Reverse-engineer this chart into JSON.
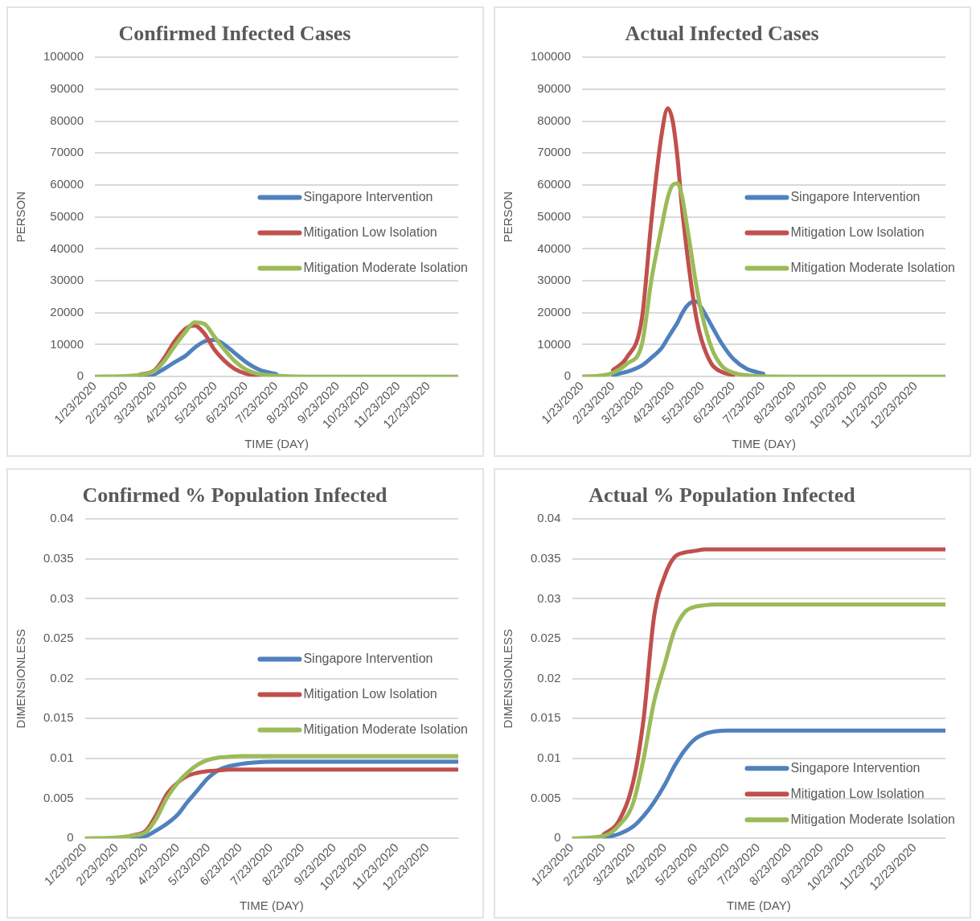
{
  "chart_data": [
    {
      "type": "line",
      "title": "Confirmed Infected Cases",
      "xlabel": "TIME (DAY)",
      "ylabel": "PERSON",
      "x": [
        "2020-01-23",
        "2020-02-23",
        "2020-03-08",
        "2020-03-23",
        "2020-04-02",
        "2020-04-12",
        "2020-04-23",
        "2020-05-02",
        "2020-05-12",
        "2020-05-22",
        "2020-06-01",
        "2020-06-11",
        "2020-06-23",
        "2020-07-06",
        "2020-07-23",
        "2020-08-23",
        "2020-09-23",
        "2021-01-22"
      ],
      "series": [
        {
          "name": "Singapore Intervention",
          "color": "#4f81bd",
          "values": [
            null,
            null,
            300,
            800,
            2500,
            4500,
            6500,
            9000,
            11000,
            11500,
            10000,
            7500,
            4500,
            2200,
            800,
            null,
            null,
            null
          ]
        },
        {
          "name": "Mitigation Low Isolation",
          "color": "#c0504d",
          "values": [
            null,
            null,
            600,
            2000,
            6000,
            11000,
            15000,
            16000,
            13500,
            8500,
            5000,
            2500,
            900,
            200,
            null,
            null,
            null,
            null
          ]
        },
        {
          "name": "Mitigation Moderate Isolation",
          "color": "#9bbb59",
          "values": [
            0,
            200,
            500,
            1800,
            5000,
            9500,
            14000,
            17000,
            16500,
            12500,
            8500,
            5000,
            2200,
            800,
            300,
            0,
            0,
            0
          ]
        }
      ],
      "xlim": [
        "2020-01-23",
        "2021-01-22"
      ],
      "xticks": [
        {
          "value": "2020-01-23",
          "label": "1/23/2020"
        },
        {
          "value": "2020-02-23",
          "label": "2/23/2020"
        },
        {
          "value": "2020-03-23",
          "label": "3/23/2020"
        },
        {
          "value": "2020-04-23",
          "label": "4/23/2020"
        },
        {
          "value": "2020-05-23",
          "label": "5/23/2020"
        },
        {
          "value": "2020-06-23",
          "label": "6/23/2020"
        },
        {
          "value": "2020-07-23",
          "label": "7/23/2020"
        },
        {
          "value": "2020-08-23",
          "label": "8/23/2020"
        },
        {
          "value": "2020-09-23",
          "label": "9/23/2020"
        },
        {
          "value": "2020-10-23",
          "label": "10/23/2020"
        },
        {
          "value": "2020-11-23",
          "label": "11/23/2020"
        },
        {
          "value": "2020-12-23",
          "label": "12/23/2020"
        }
      ],
      "ylim": [
        0,
        100000
      ],
      "yticks": [
        0,
        10000,
        20000,
        30000,
        40000,
        50000,
        60000,
        70000,
        80000,
        90000,
        100000
      ],
      "grid": "y",
      "legend": "right"
    },
    {
      "type": "line",
      "title": "Actual Infected Cases",
      "xlabel": "TIME (DAY)",
      "ylabel": "PERSON",
      "x": [
        "2020-01-23",
        "2020-02-12",
        "2020-02-23",
        "2020-03-08",
        "2020-03-23",
        "2020-04-02",
        "2020-04-12",
        "2020-04-18",
        "2020-04-23",
        "2020-04-28",
        "2020-05-02",
        "2020-05-07",
        "2020-05-12",
        "2020-05-17",
        "2020-05-22",
        "2020-06-01",
        "2020-06-11",
        "2020-06-23",
        "2020-07-06",
        "2020-07-23",
        "2020-08-23",
        "2020-09-23",
        "2021-01-22"
      ],
      "series": [
        {
          "name": "Singapore Intervention",
          "color": "#4f81bd",
          "values": [
            null,
            null,
            500,
            1500,
            3500,
            6000,
            9000,
            12000,
            14500,
            17000,
            19500,
            22000,
            23300,
            23500,
            21500,
            16000,
            10500,
            5500,
            2500,
            900,
            null,
            null,
            null
          ]
        },
        {
          "name": "Mitigation Low Isolation",
          "color": "#c0504d",
          "values": [
            null,
            null,
            2000,
            6000,
            18000,
            50000,
            76000,
            84000,
            80000,
            68000,
            54000,
            40000,
            28000,
            18000,
            11500,
            4000,
            1500,
            500,
            null,
            null,
            null,
            null,
            null
          ]
        },
        {
          "name": "Mitigation Moderate Isolation",
          "color": "#9bbb59",
          "values": [
            0,
            400,
            1200,
            4000,
            10000,
            31000,
            47000,
            56000,
            60000,
            60500,
            57000,
            48000,
            38000,
            28000,
            20000,
            9000,
            3500,
            1200,
            400,
            100,
            0,
            0,
            0
          ]
        }
      ],
      "xlim": [
        "2020-01-23",
        "2021-01-22"
      ],
      "xticks": [
        {
          "value": "2020-01-23",
          "label": "1/23/2020"
        },
        {
          "value": "2020-02-23",
          "label": "2/23/2020"
        },
        {
          "value": "2020-03-23",
          "label": "3/23/2020"
        },
        {
          "value": "2020-04-23",
          "label": "4/23/2020"
        },
        {
          "value": "2020-05-23",
          "label": "5/23/2020"
        },
        {
          "value": "2020-06-23",
          "label": "6/23/2020"
        },
        {
          "value": "2020-07-23",
          "label": "7/23/2020"
        },
        {
          "value": "2020-08-23",
          "label": "8/23/2020"
        },
        {
          "value": "2020-09-23",
          "label": "9/23/2020"
        },
        {
          "value": "2020-10-23",
          "label": "10/23/2020"
        },
        {
          "value": "2020-11-23",
          "label": "11/23/2020"
        },
        {
          "value": "2020-12-23",
          "label": "12/23/2020"
        }
      ],
      "ylim": [
        0,
        100000
      ],
      "yticks": [
        0,
        10000,
        20000,
        30000,
        40000,
        50000,
        60000,
        70000,
        80000,
        90000,
        100000
      ],
      "grid": "y",
      "legend": "right"
    },
    {
      "type": "line",
      "title": "Confirmed % Population Infected",
      "xlabel": "TIME (DAY)",
      "ylabel": "DIMENSIONLESS",
      "x": [
        "2020-01-23",
        "2020-02-23",
        "2020-03-08",
        "2020-03-23",
        "2020-04-02",
        "2020-04-12",
        "2020-04-23",
        "2020-05-02",
        "2020-05-12",
        "2020-05-22",
        "2020-06-01",
        "2020-06-11",
        "2020-06-23",
        "2020-07-06",
        "2020-07-23",
        "2020-08-23",
        "2021-01-22"
      ],
      "series": [
        {
          "name": "Singapore Intervention",
          "color": "#4f81bd",
          "values": [
            null,
            null,
            0.0001,
            0.0003,
            0.001,
            0.0018,
            0.003,
            0.0045,
            0.006,
            0.0075,
            0.0085,
            0.009,
            0.0093,
            0.0095,
            0.0096,
            0.0096,
            0.0096
          ]
        },
        {
          "name": "Mitigation Low Isolation",
          "color": "#c0504d",
          "values": [
            null,
            null,
            0.0003,
            0.001,
            0.003,
            0.0055,
            0.007,
            0.0078,
            0.0082,
            0.0084,
            0.0085,
            0.0086,
            0.0086,
            0.0086,
            0.0086,
            0.0086,
            0.0086
          ]
        },
        {
          "name": "Mitigation Moderate Isolation",
          "color": "#9bbb59",
          "values": [
            0,
            0.0001,
            0.0003,
            0.0008,
            0.0025,
            0.005,
            0.007,
            0.0082,
            0.0092,
            0.0098,
            0.0101,
            0.0102,
            0.0103,
            0.0103,
            0.0103,
            0.0103,
            0.0103
          ]
        }
      ],
      "xlim": [
        "2020-01-23",
        "2021-01-22"
      ],
      "xticks": [
        {
          "value": "2020-01-23",
          "label": "1/23/2020"
        },
        {
          "value": "2020-02-23",
          "label": "2/23/2020"
        },
        {
          "value": "2020-03-23",
          "label": "3/23/2020"
        },
        {
          "value": "2020-04-23",
          "label": "4/23/2020"
        },
        {
          "value": "2020-05-23",
          "label": "5/23/2020"
        },
        {
          "value": "2020-06-23",
          "label": "6/23/2020"
        },
        {
          "value": "2020-07-23",
          "label": "7/23/2020"
        },
        {
          "value": "2020-08-23",
          "label": "8/23/2020"
        },
        {
          "value": "2020-09-23",
          "label": "9/23/2020"
        },
        {
          "value": "2020-10-23",
          "label": "10/23/2020"
        },
        {
          "value": "2020-11-23",
          "label": "11/23/2020"
        },
        {
          "value": "2020-12-23",
          "label": "12/23/2020"
        }
      ],
      "ylim": [
        0,
        0.04
      ],
      "yticks": [
        0,
        0.005,
        0.01,
        0.015,
        0.02,
        0.025,
        0.03,
        0.035,
        0.04
      ],
      "grid": "y",
      "legend": "right"
    },
    {
      "type": "line",
      "title": "Actual % Population Infected",
      "xlabel": "TIME (DAY)",
      "ylabel": "DIMENSIONLESS",
      "x": [
        "2020-01-23",
        "2020-02-23",
        "2020-03-08",
        "2020-03-23",
        "2020-04-02",
        "2020-04-12",
        "2020-04-23",
        "2020-05-02",
        "2020-05-12",
        "2020-05-22",
        "2020-06-01",
        "2020-06-11",
        "2020-06-23",
        "2021-01-22"
      ],
      "series": [
        {
          "name": "Singapore Intervention",
          "color": "#4f81bd",
          "values": [
            null,
            0.0001,
            0.0005,
            0.0015,
            0.0028,
            0.0045,
            0.0068,
            0.009,
            0.011,
            0.0124,
            0.0131,
            0.0134,
            0.0135,
            0.0135
          ]
        },
        {
          "name": "Mitigation Low Isolation",
          "color": "#c0504d",
          "values": [
            null,
            0.0005,
            0.002,
            0.0072,
            0.015,
            0.0276,
            0.033,
            0.0352,
            0.0358,
            0.036,
            0.0362,
            0.0362,
            0.0362,
            0.0362
          ]
        },
        {
          "name": "Mitigation Moderate Isolation",
          "color": "#9bbb59",
          "values": [
            0,
            0.0003,
            0.0015,
            0.0045,
            0.01,
            0.017,
            0.022,
            0.026,
            0.0283,
            0.029,
            0.0292,
            0.0293,
            0.0293,
            0.0293
          ]
        }
      ],
      "xlim": [
        "2020-01-23",
        "2021-01-22"
      ],
      "xticks": [
        {
          "value": "2020-01-23",
          "label": "1/23/2020"
        },
        {
          "value": "2020-02-23",
          "label": "2/23/2020"
        },
        {
          "value": "2020-03-23",
          "label": "3/23/2020"
        },
        {
          "value": "2020-04-23",
          "label": "4/23/2020"
        },
        {
          "value": "2020-05-23",
          "label": "5/23/2020"
        },
        {
          "value": "2020-06-23",
          "label": "6/23/2020"
        },
        {
          "value": "2020-07-23",
          "label": "7/23/2020"
        },
        {
          "value": "2020-08-23",
          "label": "8/23/2020"
        },
        {
          "value": "2020-09-23",
          "label": "9/23/2020"
        },
        {
          "value": "2020-10-23",
          "label": "10/23/2020"
        },
        {
          "value": "2020-11-23",
          "label": "11/23/2020"
        },
        {
          "value": "2020-12-23",
          "label": "12/23/2020"
        }
      ],
      "ylim": [
        0,
        0.04
      ],
      "yticks": [
        0,
        0.005,
        0.01,
        0.015,
        0.02,
        0.025,
        0.03,
        0.035,
        0.04
      ],
      "grid": "y",
      "legend": "bottom right"
    }
  ]
}
